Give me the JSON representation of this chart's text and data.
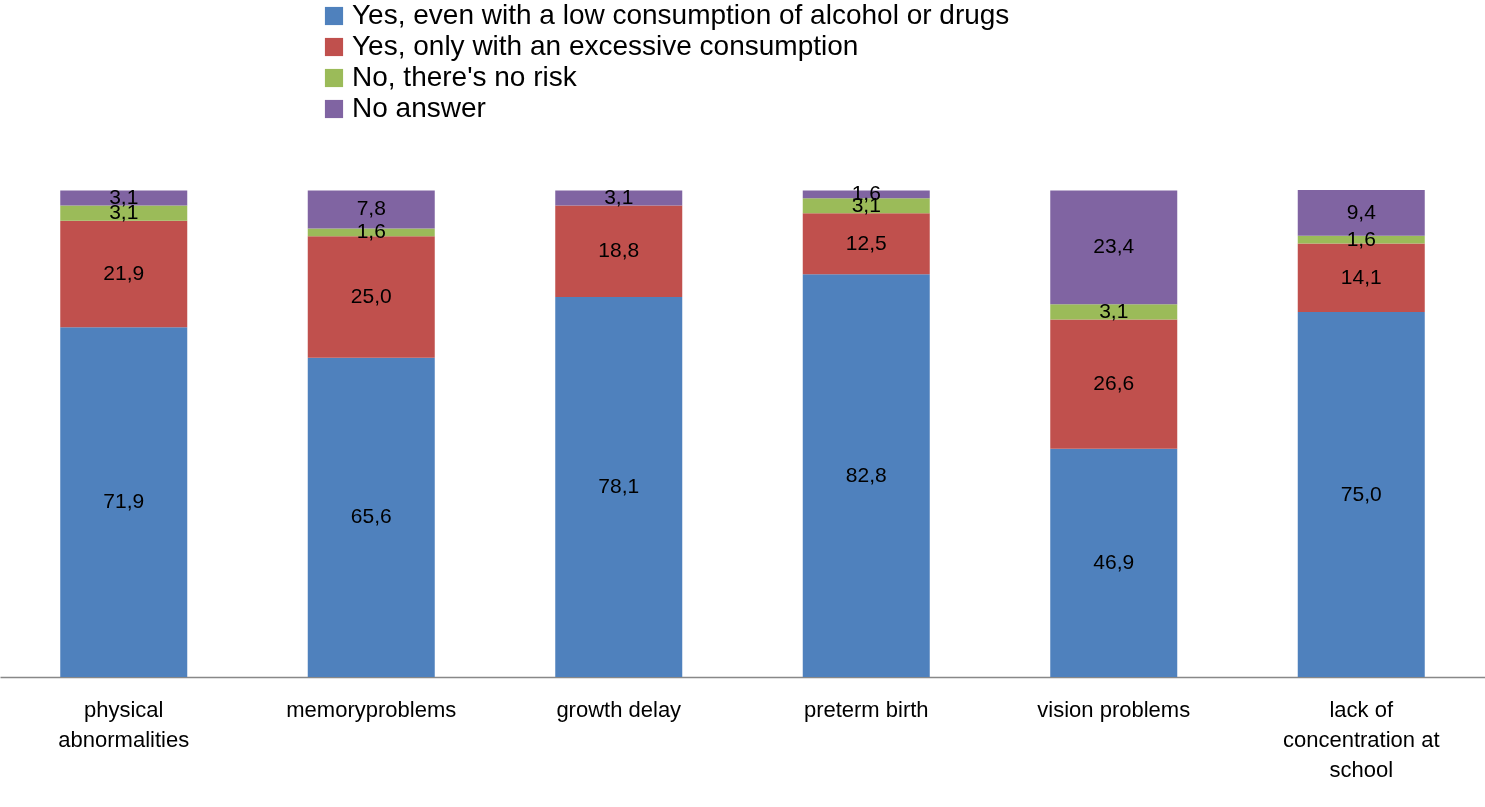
{
  "chart_data": {
    "type": "bar",
    "stacked": true,
    "legend": "top",
    "grid": false,
    "categories": [
      "physical abnormalities",
      "memoryproblems",
      "growth delay",
      "preterm birth",
      "vision problems",
      "lack of concentration at school"
    ],
    "series": [
      {
        "name": "Yes, even with a low consumption of alcohol or drugs",
        "color": "#4f81bd",
        "values": [
          71.9,
          65.6,
          78.1,
          82.8,
          46.9,
          75.0
        ],
        "value_labels": [
          "71,9",
          "65,6",
          "78,1",
          "82,8",
          "46,9",
          "75,0"
        ]
      },
      {
        "name": "Yes, only with an excessive consumption",
        "color": "#c0504d",
        "values": [
          21.9,
          25.0,
          18.8,
          12.5,
          26.6,
          14.1
        ],
        "value_labels": [
          "21,9",
          "25,0",
          "18,8",
          "12,5",
          "26,6",
          "14,1"
        ]
      },
      {
        "name": "No, there's no risk",
        "color": "#9bbb59",
        "values": [
          3.1,
          1.6,
          0,
          3.1,
          3.1,
          1.6
        ],
        "value_labels": [
          "3,1",
          "1,6",
          null,
          "3,1",
          "3,1",
          "1,6"
        ]
      },
      {
        "name": "No answer",
        "color": "#8064a2",
        "values": [
          3.1,
          7.8,
          3.1,
          1.6,
          23.4,
          9.4
        ],
        "value_labels": [
          "3,1",
          "7,8",
          "3,1",
          "1,6",
          "23,4",
          "9,4"
        ]
      }
    ]
  }
}
